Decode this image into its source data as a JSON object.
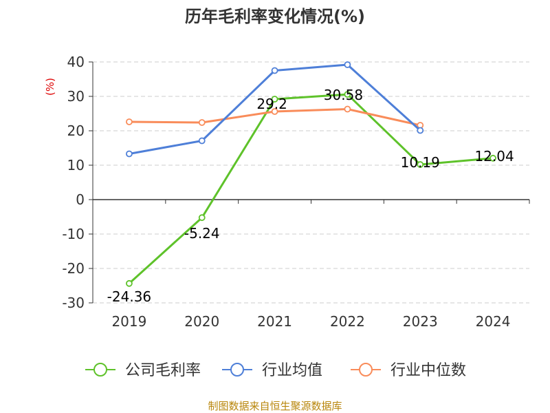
{
  "chart_data": {
    "type": "line",
    "title": "历年毛利率变化情况(%)",
    "ylabel": "(%)",
    "xlabel": "",
    "categories": [
      "2019",
      "2020",
      "2021",
      "2022",
      "2023",
      "2024"
    ],
    "ylim": [
      -30,
      40
    ],
    "yticks": [
      40,
      30,
      20,
      10,
      0,
      -10,
      -20,
      -30
    ],
    "grid": true,
    "legend_position": "bottom",
    "series": [
      {
        "name": "公司毛利率",
        "color": "#5ec22a",
        "values": [
          -24.36,
          -5.24,
          29.2,
          30.58,
          10.19,
          12.04
        ],
        "labels": [
          "-24.36",
          "-5.24",
          "29.2",
          "30.58",
          "10.19",
          "12.04"
        ]
      },
      {
        "name": "行业均值",
        "color": "#4e7fd8",
        "values": [
          13.3,
          17.1,
          37.5,
          39.2,
          20.1,
          null
        ]
      },
      {
        "name": "行业中位数",
        "color": "#f98c5a",
        "values": [
          22.6,
          22.4,
          25.6,
          26.3,
          21.6,
          null
        ]
      }
    ],
    "source": "制图数据来自恒生聚源数据库"
  }
}
